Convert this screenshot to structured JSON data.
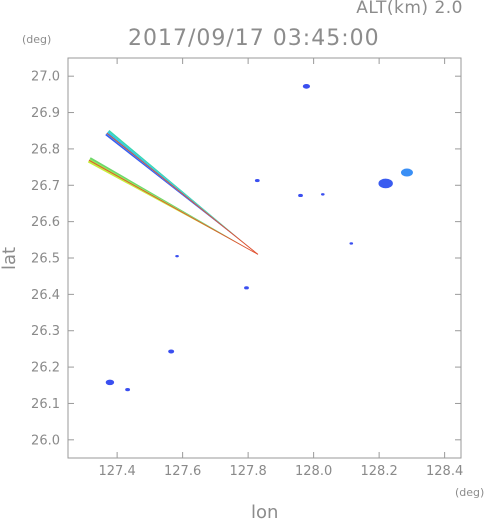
{
  "header": {
    "altitude_label": "ALT(km)  2.0",
    "timestamp": "2017/09/17 03:45:00"
  },
  "chart_data": {
    "type": "scatter",
    "title": "2017/09/17 03:45:00",
    "subtitle": "ALT(km)  2.0",
    "xlabel": "lon",
    "ylabel": "lat",
    "x_unit": "(deg)",
    "y_unit": "(deg)",
    "xlim": [
      127.25,
      128.45
    ],
    "ylim": [
      25.95,
      27.05
    ],
    "x_ticks": [
      127.4,
      127.6,
      127.8,
      128.0,
      128.2,
      128.4
    ],
    "x_tick_labels": [
      "127.4",
      "127.6",
      "127.8",
      "128.0",
      "128.2",
      "128.4"
    ],
    "y_ticks": [
      26.0,
      26.1,
      26.2,
      26.3,
      26.4,
      26.5,
      26.6,
      26.7,
      26.8,
      26.9,
      27.0
    ],
    "y_tick_labels": [
      "26.0",
      "26.1",
      "26.2",
      "26.3",
      "26.4",
      "26.5",
      "26.6",
      "26.7",
      "26.8",
      "26.9",
      "27.0"
    ],
    "grid": false,
    "rays": [
      {
        "from": [
          127.83,
          26.51
        ],
        "to": [
          127.37,
          26.845
        ],
        "halfwidth_end": 0.009,
        "colors": [
          "#3a5cf0",
          "#2e8ef5",
          "#2ac8e8",
          "#38d6b0"
        ],
        "edge_color": "#e05030"
      },
      {
        "from": [
          127.83,
          26.51
        ],
        "to": [
          127.315,
          26.77
        ],
        "halfwidth_end": 0.008,
        "colors": [
          "#c6ee3c",
          "#9ee640",
          "#6ed86a"
        ],
        "edge_color": "#e05030"
      }
    ],
    "echoes": [
      {
        "lon": 127.978,
        "lat": 26.972,
        "size": 3,
        "color": "#3a4ff0"
      },
      {
        "lon": 128.22,
        "lat": 26.705,
        "size": 6,
        "color": "#3a5cf0"
      },
      {
        "lon": 128.285,
        "lat": 26.735,
        "size": 5,
        "color": "#3a8ff5"
      },
      {
        "lon": 127.828,
        "lat": 26.713,
        "size": 2,
        "color": "#3a4ff0"
      },
      {
        "lon": 127.96,
        "lat": 26.672,
        "size": 2,
        "color": "#3a4ff0"
      },
      {
        "lon": 128.028,
        "lat": 26.675,
        "size": 1.5,
        "color": "#3a4ff0"
      },
      {
        "lon": 128.115,
        "lat": 26.54,
        "size": 1.5,
        "color": "#3a4ff0"
      },
      {
        "lon": 127.583,
        "lat": 26.505,
        "size": 1.5,
        "color": "#3a4ff0"
      },
      {
        "lon": 127.795,
        "lat": 26.418,
        "size": 2,
        "color": "#3a4ff0"
      },
      {
        "lon": 127.565,
        "lat": 26.243,
        "size": 2.5,
        "color": "#3a4ff0"
      },
      {
        "lon": 127.378,
        "lat": 26.158,
        "size": 3.5,
        "color": "#3a4ff0"
      },
      {
        "lon": 127.432,
        "lat": 26.138,
        "size": 2,
        "color": "#3a4ff0"
      }
    ]
  }
}
